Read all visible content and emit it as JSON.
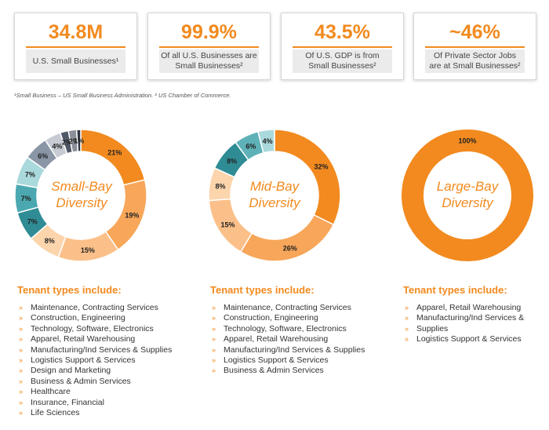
{
  "stats": [
    {
      "value": "34.8M",
      "label_lines": [
        "U.S. Small Businesses¹"
      ]
    },
    {
      "value": "99.9%",
      "label_lines": [
        "Of all U.S. Businesses are",
        "Small Businesses²"
      ]
    },
    {
      "value": "43.5%",
      "label_lines": [
        "Of U.S. GDP is from",
        "Small Businesses²"
      ]
    },
    {
      "value": "~46%",
      "label_lines": [
        "Of Private Sector Jobs",
        "are at Small Businesses²"
      ]
    }
  ],
  "footnote": "¹Small Business – US Small Business Administration. ² US Chamber of Commerce.",
  "colors": {
    "accent": "#f28a1f"
  },
  "chart_data": [
    {
      "type": "pie",
      "title_lines": [
        "Small-Bay",
        "Diversity"
      ],
      "labels": [
        "21%",
        "19%",
        "15%",
        "8%",
        "7%",
        "7%",
        "7%",
        "6%",
        "4%",
        "2%",
        "2%",
        "1%"
      ],
      "values": [
        21,
        19,
        15,
        8,
        7,
        7,
        7,
        6,
        4,
        2,
        2,
        1
      ],
      "colors": [
        "#f28a1f",
        "#f7a65a",
        "#fbc089",
        "#fcd5ad",
        "#2f8c95",
        "#4ba8b0",
        "#aad9dc",
        "#8a96a6",
        "#c7ccd4",
        "#4f5866",
        "#8a8f99",
        "#2e3440"
      ]
    },
    {
      "type": "pie",
      "title_lines": [
        "Mid-Bay",
        "Diversity"
      ],
      "labels": [
        "32%",
        "26%",
        "15%",
        "8%",
        "8%",
        "6%",
        "4%"
      ],
      "values": [
        32,
        26,
        15,
        8,
        8,
        6,
        4
      ],
      "colors": [
        "#f28a1f",
        "#f7a65a",
        "#fbc089",
        "#fcd5ad",
        "#2f8c95",
        "#5fb1b8",
        "#aad9dc"
      ]
    },
    {
      "type": "pie",
      "title_lines": [
        "Large-Bay",
        "Diversity"
      ],
      "labels": [
        "100%"
      ],
      "values": [
        100
      ],
      "colors": [
        "#f28a1f"
      ]
    }
  ],
  "tenants": [
    {
      "heading": "Tenant types include:",
      "items": [
        "Maintenance, Contracting Services",
        "Construction, Engineering",
        "Technology, Software, Electronics",
        "Apparel, Retail Warehousing",
        "Manufacturing/Ind Services & Supplies",
        "Logistics Support & Services",
        "Design and Marketing",
        "Business & Admin Services",
        "Healthcare",
        "Insurance, Financial",
        "Life Sciences"
      ]
    },
    {
      "heading": "Tenant types include:",
      "items": [
        "Maintenance, Contracting Services",
        "Construction, Engineering",
        "Technology, Software, Electronics",
        "Apparel, Retail Warehousing",
        "Manufacturing/Ind Services & Supplies",
        "Logistics Support & Services",
        "Business & Admin Services"
      ]
    },
    {
      "heading": "Tenant types include:",
      "items": [
        "Apparel, Retail Warehousing",
        "Manufacturing/Ind Services &",
        "Supplies",
        "Logistics Support & Services"
      ]
    }
  ],
  "bullet_glyph": "»"
}
